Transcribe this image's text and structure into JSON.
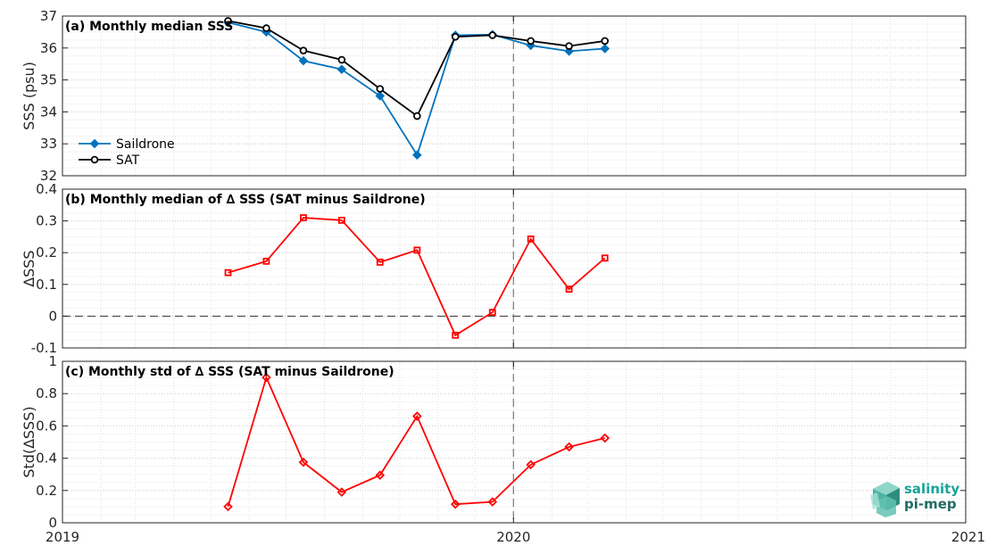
{
  "chart_data": [
    {
      "type": "line",
      "title": "(a) Monthly median SSS",
      "xlabel": "",
      "ylabel": "SSS (psu)",
      "ylim": [
        32,
        37
      ],
      "yticks": [
        "32",
        "33",
        "34",
        "35",
        "36",
        "37"
      ],
      "grid": true,
      "legend": "left",
      "series": [
        {
          "name": "Saildrone",
          "color": "#0072BD",
          "marker": "diamond",
          "x": [
            "2019-05-15",
            "2019-06-15",
            "2019-07-15",
            "2019-08-15",
            "2019-09-15",
            "2019-10-15",
            "2019-11-15",
            "2019-12-15",
            "2020-01-15",
            "2020-02-15",
            "2020-03-15"
          ],
          "y": [
            36.8,
            36.5,
            35.6,
            35.33,
            34.5,
            32.65,
            36.4,
            36.42,
            36.08,
            35.9,
            35.98
          ]
        },
        {
          "name": "SAT",
          "color": "#000000",
          "marker": "circle",
          "x": [
            "2019-05-15",
            "2019-06-15",
            "2019-07-15",
            "2019-08-15",
            "2019-09-15",
            "2019-10-15",
            "2019-11-15",
            "2019-12-15",
            "2020-01-15",
            "2020-02-15",
            "2020-03-15"
          ],
          "y": [
            36.85,
            36.62,
            35.92,
            35.63,
            34.72,
            33.87,
            36.35,
            36.4,
            36.22,
            36.06,
            36.22
          ]
        }
      ]
    },
    {
      "type": "line",
      "title": "(b) Monthly median of ∆ SSS (SAT minus Saildrone)",
      "xlabel": "",
      "ylabel": "∆SSS",
      "ylim": [
        -0.1,
        0.4
      ],
      "yticks": [
        "-0.1",
        "0",
        "0.1",
        "0.2",
        "0.3",
        "0.4"
      ],
      "reference_line": 0,
      "grid": true,
      "series": [
        {
          "color": "#FF0000",
          "marker": "square",
          "x": [
            "2019-05-15",
            "2019-06-15",
            "2019-07-15",
            "2019-08-15",
            "2019-09-15",
            "2019-10-15",
            "2019-11-15",
            "2019-12-15",
            "2020-01-15",
            "2020-02-15",
            "2020-03-15"
          ],
          "y": [
            0.137,
            0.173,
            0.31,
            0.302,
            0.17,
            0.208,
            -0.06,
            0.012,
            0.243,
            0.085,
            0.183
          ]
        }
      ]
    },
    {
      "type": "line",
      "title": "(c) Monthly std of ∆ SSS (SAT minus Saildrone)",
      "xlabel": "",
      "ylabel": "Std(∆SSS)",
      "ylim": [
        0,
        1
      ],
      "yticks": [
        "0",
        "0.2",
        "0.4",
        "0.6",
        "0.8",
        "1"
      ],
      "grid": true,
      "series": [
        {
          "color": "#FF0000",
          "marker": "diamond",
          "x": [
            "2019-05-15",
            "2019-06-15",
            "2019-07-15",
            "2019-08-15",
            "2019-09-15",
            "2019-10-15",
            "2019-11-15",
            "2019-12-15",
            "2020-01-15",
            "2020-02-15",
            "2020-03-15"
          ],
          "y": [
            0.1,
            0.9,
            0.375,
            0.19,
            0.295,
            0.66,
            0.115,
            0.13,
            0.36,
            0.47,
            0.525
          ]
        }
      ]
    }
  ],
  "x_axis": {
    "range": [
      "2019-01-01",
      "2021-01-01"
    ],
    "ticks": [
      "2019",
      "2020",
      "2021"
    ],
    "vertical_marker": "2020-01-01"
  },
  "logo": {
    "line1": "salinity",
    "line2": "pi-mep",
    "color_line1": "#1aa39a",
    "color_line2": "#1f6b63"
  }
}
